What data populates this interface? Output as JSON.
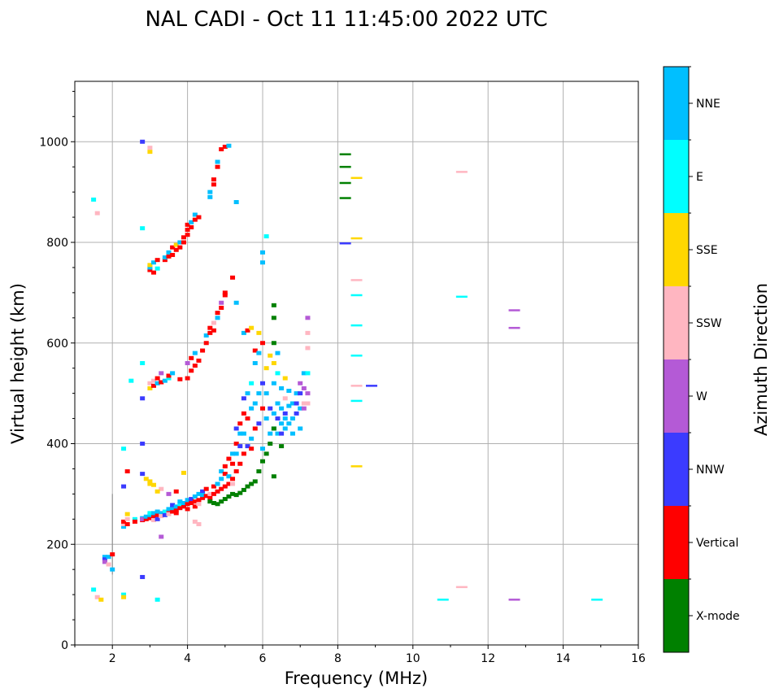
{
  "chart_data": {
    "type": "scatter",
    "title": "NAL CADI - Oct 11 11:45:00 2022 UTC",
    "xlabel": "Frequency (MHz)",
    "ylabel": "Virtual height (km)",
    "xlim": [
      1,
      16
    ],
    "ylim": [
      0,
      1120
    ],
    "xticks": [
      2,
      4,
      6,
      8,
      10,
      12,
      14,
      16
    ],
    "yticks": [
      0,
      200,
      400,
      600,
      800,
      1000
    ],
    "grid": true,
    "colorbar": {
      "label": "Azimuth Direction",
      "categories": [
        "X-mode",
        "Vertical",
        "NNW",
        "W",
        "SSW",
        "SSE",
        "E",
        "NNE"
      ],
      "colors": [
        "#008000",
        "#ff0000",
        "#3b3bff",
        "#b45ad6",
        "#ffb6c1",
        "#ffd700",
        "#00ffff",
        "#00bfff"
      ]
    },
    "point_format": [
      "frequency_mhz",
      "height_km",
      "category_index"
    ],
    "points": [
      [
        2.3,
        235,
        7
      ],
      [
        2.3,
        240,
        4
      ],
      [
        2.3,
        245,
        1
      ],
      [
        2.4,
        240,
        1
      ],
      [
        2.4,
        250,
        4
      ],
      [
        2.4,
        260,
        5
      ],
      [
        2.6,
        250,
        6
      ],
      [
        2.6,
        245,
        1
      ],
      [
        2.8,
        248,
        1
      ],
      [
        2.8,
        252,
        7
      ],
      [
        2.8,
        250,
        3
      ],
      [
        2.9,
        250,
        1
      ],
      [
        2.9,
        255,
        7
      ],
      [
        3.0,
        252,
        1
      ],
      [
        3.0,
        258,
        7
      ],
      [
        3.0,
        262,
        6
      ],
      [
        3.1,
        255,
        1
      ],
      [
        3.1,
        262,
        7
      ],
      [
        3.1,
        248,
        4
      ],
      [
        3.2,
        258,
        1
      ],
      [
        3.2,
        265,
        7
      ],
      [
        3.2,
        250,
        2
      ],
      [
        3.3,
        260,
        1
      ],
      [
        3.3,
        262,
        7
      ],
      [
        3.3,
        256,
        4
      ],
      [
        3.4,
        262,
        1
      ],
      [
        3.4,
        265,
        6
      ],
      [
        3.4,
        258,
        2
      ],
      [
        3.5,
        265,
        1
      ],
      [
        3.5,
        270,
        7
      ],
      [
        3.5,
        260,
        4
      ],
      [
        3.6,
        265,
        1
      ],
      [
        3.6,
        272,
        7
      ],
      [
        3.6,
        278,
        2
      ],
      [
        3.7,
        268,
        1
      ],
      [
        3.7,
        275,
        7
      ],
      [
        3.7,
        262,
        1
      ],
      [
        3.8,
        272,
        1
      ],
      [
        3.8,
        280,
        6
      ],
      [
        3.8,
        285,
        7
      ],
      [
        3.9,
        275,
        1
      ],
      [
        3.9,
        282,
        7
      ],
      [
        4.0,
        280,
        1
      ],
      [
        4.0,
        288,
        7
      ],
      [
        4.0,
        270,
        1
      ],
      [
        4.1,
        282,
        1
      ],
      [
        4.1,
        290,
        2
      ],
      [
        4.2,
        285,
        1
      ],
      [
        4.2,
        295,
        7
      ],
      [
        4.2,
        275,
        1
      ],
      [
        4.3,
        288,
        1
      ],
      [
        4.3,
        300,
        7
      ],
      [
        4.3,
        280,
        4
      ],
      [
        4.4,
        292,
        1
      ],
      [
        4.4,
        305,
        2
      ],
      [
        4.4,
        298,
        7
      ],
      [
        4.5,
        296,
        1
      ],
      [
        4.5,
        310,
        1
      ],
      [
        4.6,
        292,
        1
      ],
      [
        4.6,
        300,
        4
      ],
      [
        4.7,
        300,
        1
      ],
      [
        4.7,
        315,
        1
      ],
      [
        4.8,
        305,
        1
      ],
      [
        4.8,
        320,
        7
      ],
      [
        4.9,
        310,
        1
      ],
      [
        4.9,
        330,
        7
      ],
      [
        4.9,
        345,
        7
      ],
      [
        5.0,
        315,
        1
      ],
      [
        5.0,
        340,
        1
      ],
      [
        5.0,
        355,
        1
      ],
      [
        5.1,
        320,
        1
      ],
      [
        5.1,
        335,
        7
      ],
      [
        5.1,
        370,
        1
      ],
      [
        5.2,
        330,
        1
      ],
      [
        5.2,
        360,
        1
      ],
      [
        5.2,
        380,
        7
      ],
      [
        5.2,
        320,
        4
      ],
      [
        5.3,
        345,
        1
      ],
      [
        5.3,
        380,
        7
      ],
      [
        5.3,
        400,
        1
      ],
      [
        5.3,
        430,
        2
      ],
      [
        5.4,
        360,
        1
      ],
      [
        5.4,
        395,
        2
      ],
      [
        5.4,
        420,
        7
      ],
      [
        5.4,
        440,
        1
      ],
      [
        5.5,
        380,
        1
      ],
      [
        5.5,
        420,
        7
      ],
      [
        5.5,
        460,
        1
      ],
      [
        5.5,
        490,
        2
      ],
      [
        5.6,
        395,
        2
      ],
      [
        5.6,
        450,
        1
      ],
      [
        5.6,
        500,
        7
      ],
      [
        5.7,
        410,
        7
      ],
      [
        5.7,
        470,
        7
      ],
      [
        5.7,
        520,
        6
      ],
      [
        5.7,
        390,
        1
      ],
      [
        5.8,
        430,
        1
      ],
      [
        5.8,
        480,
        7
      ],
      [
        5.8,
        560,
        7
      ],
      [
        5.8,
        585,
        1
      ],
      [
        5.9,
        440,
        2
      ],
      [
        5.9,
        500,
        7
      ],
      [
        5.9,
        580,
        7
      ],
      [
        5.9,
        620,
        5
      ],
      [
        6.0,
        470,
        1
      ],
      [
        6.0,
        520,
        2
      ],
      [
        6.0,
        390,
        7
      ],
      [
        6.0,
        600,
        1
      ],
      [
        6.1,
        450,
        7
      ],
      [
        6.1,
        500,
        7
      ],
      [
        6.1,
        550,
        5
      ],
      [
        6.2,
        420,
        7
      ],
      [
        6.2,
        470,
        2
      ],
      [
        6.2,
        575,
        5
      ],
      [
        6.3,
        430,
        7
      ],
      [
        6.3,
        460,
        7
      ],
      [
        6.3,
        520,
        7
      ],
      [
        6.3,
        560,
        5
      ],
      [
        6.4,
        420,
        7
      ],
      [
        6.4,
        480,
        7
      ],
      [
        6.4,
        450,
        2
      ],
      [
        6.4,
        540,
        6
      ],
      [
        6.4,
        580,
        7
      ],
      [
        6.5,
        440,
        7
      ],
      [
        6.5,
        470,
        7
      ],
      [
        6.5,
        510,
        7
      ],
      [
        6.5,
        420,
        2
      ],
      [
        6.6,
        430,
        7
      ],
      [
        6.6,
        460,
        2
      ],
      [
        6.6,
        490,
        4
      ],
      [
        6.6,
        530,
        5
      ],
      [
        6.6,
        450,
        7
      ],
      [
        6.7,
        440,
        7
      ],
      [
        6.7,
        475,
        7
      ],
      [
        6.7,
        505,
        7
      ],
      [
        6.8,
        450,
        7
      ],
      [
        6.8,
        480,
        7
      ],
      [
        6.8,
        420,
        7
      ],
      [
        6.9,
        460,
        2
      ],
      [
        6.9,
        500,
        7
      ],
      [
        6.9,
        480,
        2
      ],
      [
        7.0,
        470,
        7
      ],
      [
        7.0,
        500,
        2
      ],
      [
        7.0,
        520,
        3
      ],
      [
        7.0,
        430,
        7
      ],
      [
        7.1,
        480,
        4
      ],
      [
        7.1,
        510,
        3
      ],
      [
        7.1,
        540,
        7
      ],
      [
        7.1,
        470,
        3
      ],
      [
        7.2,
        500,
        3
      ],
      [
        7.2,
        590,
        4
      ],
      [
        7.2,
        620,
        4
      ],
      [
        7.2,
        650,
        3
      ],
      [
        7.2,
        540,
        6
      ],
      [
        7.2,
        480,
        4
      ],
      [
        4.6,
        285,
        0
      ],
      [
        4.7,
        282,
        0
      ],
      [
        4.8,
        280,
        0
      ],
      [
        4.9,
        285,
        0
      ],
      [
        5.0,
        290,
        0
      ],
      [
        5.1,
        295,
        0
      ],
      [
        5.2,
        300,
        0
      ],
      [
        5.3,
        298,
        0
      ],
      [
        5.4,
        302,
        0
      ],
      [
        5.5,
        308,
        0
      ],
      [
        5.6,
        315,
        0
      ],
      [
        5.7,
        320,
        0
      ],
      [
        5.8,
        325,
        0
      ],
      [
        5.9,
        345,
        0
      ],
      [
        6.0,
        365,
        0
      ],
      [
        6.1,
        380,
        0
      ],
      [
        6.2,
        400,
        0
      ],
      [
        6.3,
        430,
        0
      ],
      [
        6.3,
        600,
        0
      ],
      [
        6.3,
        650,
        0
      ],
      [
        6.3,
        675,
        0
      ],
      [
        6.5,
        395,
        0
      ],
      [
        6.3,
        335,
        0
      ],
      [
        3.0,
        510,
        5
      ],
      [
        3.0,
        520,
        4
      ],
      [
        3.1,
        515,
        1
      ],
      [
        3.1,
        525,
        4
      ],
      [
        3.2,
        520,
        7
      ],
      [
        3.2,
        530,
        1
      ],
      [
        3.3,
        522,
        1
      ],
      [
        3.3,
        540,
        3
      ],
      [
        3.4,
        525,
        7
      ],
      [
        3.5,
        530,
        6
      ],
      [
        3.5,
        535,
        1
      ],
      [
        3.6,
        540,
        7
      ],
      [
        3.8,
        528,
        1
      ],
      [
        4.0,
        530,
        1
      ],
      [
        4.0,
        560,
        3
      ],
      [
        4.1,
        545,
        1
      ],
      [
        4.1,
        570,
        1
      ],
      [
        4.2,
        555,
        1
      ],
      [
        4.2,
        580,
        7
      ],
      [
        4.3,
        565,
        1
      ],
      [
        4.4,
        585,
        1
      ],
      [
        4.5,
        600,
        1
      ],
      [
        4.5,
        615,
        7
      ],
      [
        4.6,
        620,
        1
      ],
      [
        4.6,
        630,
        1
      ],
      [
        4.7,
        640,
        4
      ],
      [
        4.7,
        625,
        1
      ],
      [
        4.8,
        650,
        7
      ],
      [
        4.8,
        660,
        1
      ],
      [
        4.9,
        670,
        1
      ],
      [
        4.9,
        680,
        3
      ],
      [
        5.0,
        695,
        1
      ],
      [
        5.0,
        700,
        1
      ],
      [
        5.2,
        730,
        1
      ],
      [
        5.3,
        680,
        7
      ],
      [
        5.5,
        620,
        7
      ],
      [
        5.6,
        625,
        1
      ],
      [
        5.7,
        630,
        5
      ],
      [
        3.0,
        745,
        1
      ],
      [
        3.0,
        750,
        7
      ],
      [
        3.0,
        755,
        5
      ],
      [
        3.1,
        740,
        1
      ],
      [
        3.1,
        760,
        7
      ],
      [
        3.2,
        748,
        6
      ],
      [
        3.2,
        765,
        1
      ],
      [
        3.4,
        765,
        1
      ],
      [
        3.4,
        770,
        7
      ],
      [
        3.5,
        772,
        1
      ],
      [
        3.5,
        780,
        7
      ],
      [
        3.6,
        775,
        1
      ],
      [
        3.6,
        790,
        1
      ],
      [
        3.7,
        785,
        1
      ],
      [
        3.7,
        795,
        5
      ],
      [
        3.8,
        790,
        1
      ],
      [
        3.8,
        800,
        7
      ],
      [
        3.9,
        800,
        1
      ],
      [
        3.9,
        810,
        1
      ],
      [
        4.0,
        815,
        1
      ],
      [
        4.0,
        825,
        1
      ],
      [
        4.0,
        835,
        1
      ],
      [
        4.1,
        830,
        1
      ],
      [
        4.1,
        840,
        7
      ],
      [
        4.2,
        845,
        1
      ],
      [
        4.2,
        855,
        7
      ],
      [
        4.3,
        850,
        1
      ],
      [
        4.6,
        890,
        7
      ],
      [
        4.6,
        900,
        7
      ],
      [
        4.7,
        915,
        1
      ],
      [
        4.7,
        925,
        1
      ],
      [
        4.8,
        950,
        1
      ],
      [
        4.8,
        960,
        7
      ],
      [
        4.9,
        985,
        1
      ],
      [
        5.0,
        990,
        1
      ],
      [
        5.1,
        992,
        7
      ],
      [
        5.3,
        880,
        7
      ],
      [
        6.0,
        780,
        7
      ],
      [
        6.0,
        760,
        7
      ],
      [
        6.1,
        812,
        6
      ],
      [
        2.8,
        1000,
        2
      ],
      [
        3.0,
        980,
        5
      ],
      [
        3.0,
        988,
        4
      ],
      [
        2.8,
        828,
        6
      ],
      [
        1.5,
        885,
        6
      ],
      [
        1.6,
        858,
        4
      ],
      [
        1.5,
        110,
        6
      ],
      [
        1.6,
        95,
        4
      ],
      [
        1.7,
        90,
        5
      ],
      [
        1.8,
        175,
        7
      ],
      [
        1.8,
        170,
        2
      ],
      [
        1.8,
        165,
        3
      ],
      [
        1.9,
        160,
        4
      ],
      [
        1.9,
        175,
        7
      ],
      [
        2.0,
        180,
        1
      ],
      [
        2.0,
        150,
        7
      ],
      [
        2.3,
        100,
        6
      ],
      [
        2.3,
        95,
        5
      ],
      [
        2.3,
        315,
        2
      ],
      [
        2.4,
        345,
        1
      ],
      [
        2.3,
        390,
        6
      ],
      [
        3.3,
        215,
        3
      ],
      [
        2.8,
        135,
        2
      ],
      [
        3.2,
        90,
        6
      ],
      [
        2.8,
        400,
        2
      ],
      [
        2.8,
        340,
        2
      ],
      [
        2.9,
        330,
        5
      ],
      [
        3.0,
        325,
        5
      ],
      [
        3.0,
        320,
        5
      ],
      [
        3.1,
        318,
        5
      ],
      [
        3.3,
        310,
        4
      ],
      [
        3.2,
        305,
        5
      ],
      [
        3.5,
        300,
        3
      ],
      [
        3.7,
        305,
        1
      ],
      [
        3.9,
        342,
        5
      ],
      [
        4.3,
        240,
        4
      ],
      [
        4.2,
        245,
        4
      ],
      [
        2.8,
        560,
        6
      ],
      [
        2.8,
        490,
        2
      ],
      [
        2.5,
        525,
        6
      ],
      [
        8.2,
        975,
        0
      ],
      [
        8.2,
        950,
        0
      ],
      [
        8.2,
        918,
        0
      ],
      [
        8.2,
        888,
        0
      ],
      [
        8.2,
        798,
        2
      ],
      [
        8.5,
        928,
        5
      ],
      [
        8.5,
        808,
        5
      ],
      [
        8.5,
        725,
        4
      ],
      [
        8.5,
        695,
        6
      ],
      [
        8.5,
        635,
        6
      ],
      [
        8.5,
        575,
        6
      ],
      [
        8.5,
        515,
        4
      ],
      [
        8.5,
        485,
        6
      ],
      [
        8.5,
        355,
        5
      ],
      [
        8.9,
        515,
        2
      ],
      [
        11.3,
        940,
        4
      ],
      [
        11.3,
        692,
        6
      ],
      [
        11.3,
        115,
        4
      ],
      [
        12.7,
        665,
        3
      ],
      [
        12.7,
        630,
        3
      ],
      [
        12.7,
        90,
        3
      ],
      [
        10.8,
        90,
        6
      ],
      [
        14.9,
        90,
        6
      ]
    ]
  }
}
